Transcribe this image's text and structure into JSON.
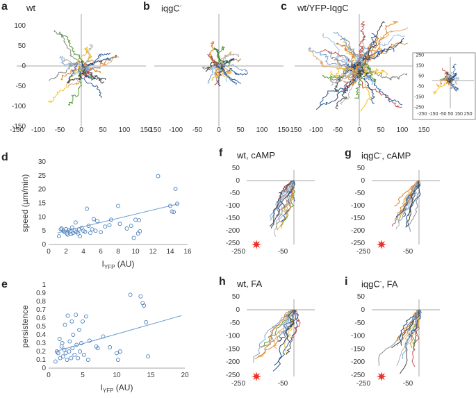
{
  "figure_title": "",
  "colors": {
    "axis": "#a6a6a6",
    "scatter": "#4a7ebb",
    "trend": "#6b9bd1",
    "track_palette": [
      "#2e5f9e",
      "#d9822b",
      "#7aa6d6",
      "#444444",
      "#f2c02e",
      "#5b9b3a",
      "#8c8c8c",
      "#c0504d",
      "#9dc3e6",
      "#b3b3b3",
      "#e6a86c",
      "#1f497d"
    ],
    "starburst": "#e8332a"
  },
  "chart_data": [
    {
      "id": "a",
      "label": "a",
      "title": "wt",
      "type": "line",
      "xlim": [
        -150,
        150
      ],
      "ylim": [
        -150,
        150
      ],
      "xticks": [
        -150,
        -100,
        -50,
        0,
        50,
        100,
        150
      ],
      "yticks": [
        100,
        50,
        0,
        -50,
        -100,
        -150
      ]
    },
    {
      "id": "b",
      "label": "b",
      "title": "iqgC",
      "title_sup": "-",
      "type": "line",
      "xlim": [
        -150,
        150
      ],
      "ylim": [
        -150,
        150
      ],
      "xticks": [
        -150,
        -100,
        -50,
        0,
        50,
        100,
        150
      ],
      "yticks": []
    },
    {
      "id": "c",
      "label": "c",
      "title": "wt/YFP-IqgC",
      "type": "line",
      "xlim": [
        -150,
        150
      ],
      "ylim": [
        -150,
        150
      ],
      "xticks": [
        -150,
        -100,
        -50,
        0,
        50,
        100,
        150
      ],
      "yticks": [],
      "inset": {
        "xticks": [
          -250,
          -150,
          -50,
          50,
          150,
          250
        ],
        "xtick_text": "-250 -150 -50  50 150 250",
        "yticks": [
          250,
          150,
          50,
          -50,
          -150,
          -250
        ]
      }
    },
    {
      "id": "d",
      "label": "d",
      "title": "",
      "type": "scatter",
      "xlabel": "I",
      "xlabel_sub": "YFP",
      "xlabel_unit": " (AU)",
      "ylabel": "speed (µm/min)",
      "xlim": [
        0,
        16
      ],
      "ylim": [
        0,
        30
      ],
      "xticks": [
        0,
        2,
        4,
        6,
        8,
        10,
        12,
        14,
        16
      ],
      "yticks": [
        0,
        5,
        10,
        15,
        20,
        25,
        30
      ],
      "trendline": [
        [
          1.0,
          4.2
        ],
        [
          15.0,
          14.8
        ]
      ],
      "points": [
        [
          1.2,
          3.0
        ],
        [
          1.4,
          5.5
        ],
        [
          1.5,
          5.8
        ],
        [
          1.7,
          5.0
        ],
        [
          1.8,
          4.6
        ],
        [
          2.0,
          5.6
        ],
        [
          2.1,
          4.0
        ],
        [
          2.2,
          3.6
        ],
        [
          2.3,
          5.2
        ],
        [
          2.5,
          4.8
        ],
        [
          2.6,
          3.8
        ],
        [
          2.7,
          6.2
        ],
        [
          2.8,
          4.2
        ],
        [
          3.0,
          5.0
        ],
        [
          3.1,
          8.0
        ],
        [
          3.2,
          4.5
        ],
        [
          3.4,
          4.0
        ],
        [
          3.5,
          5.5
        ],
        [
          3.6,
          3.0
        ],
        [
          3.8,
          6.0
        ],
        [
          4.0,
          5.0
        ],
        [
          4.2,
          4.6
        ],
        [
          4.4,
          13.0
        ],
        [
          4.6,
          6.8
        ],
        [
          4.8,
          4.2
        ],
        [
          5.0,
          5.5
        ],
        [
          5.2,
          9.2
        ],
        [
          5.4,
          5.0
        ],
        [
          5.6,
          8.5
        ],
        [
          6.0,
          4.5
        ],
        [
          6.5,
          6.5
        ],
        [
          7.0,
          7.0
        ],
        [
          7.2,
          9.0
        ],
        [
          8.0,
          14.0
        ],
        [
          8.2,
          7.5
        ],
        [
          9.0,
          5.8
        ],
        [
          9.5,
          6.8
        ],
        [
          10.0,
          9.0
        ],
        [
          10.3,
          4.0
        ],
        [
          10.5,
          4.8
        ],
        [
          12.6,
          24.8
        ],
        [
          14.0,
          14.0
        ],
        [
          14.2,
          12.0
        ],
        [
          14.4,
          11.8
        ],
        [
          14.6,
          20.2
        ],
        [
          14.8,
          14.8
        ],
        [
          10.4,
          8.8
        ],
        [
          9.8,
          2.4
        ]
      ]
    },
    {
      "id": "e",
      "label": "e",
      "title": "",
      "type": "scatter",
      "xlabel": "I",
      "xlabel_sub": "YFP",
      "xlabel_unit": " (AU)",
      "ylabel": "persistence",
      "xlim": [
        0,
        20
      ],
      "ylim": [
        0,
        1
      ],
      "xticks": [
        0,
        5,
        10,
        15,
        20
      ],
      "yticks": [
        0,
        0.1,
        0.2,
        0.3,
        0.4,
        0.5,
        0.6,
        0.7,
        0.8,
        0.9,
        1
      ],
      "trendline": [
        [
          1.0,
          0.2
        ],
        [
          19.5,
          0.63
        ]
      ],
      "points": [
        [
          1.0,
          0.08
        ],
        [
          1.2,
          0.2
        ],
        [
          1.4,
          0.18
        ],
        [
          1.6,
          0.35
        ],
        [
          1.7,
          0.12
        ],
        [
          1.9,
          0.26
        ],
        [
          2.0,
          0.3
        ],
        [
          2.1,
          0.14
        ],
        [
          2.3,
          0.22
        ],
        [
          2.4,
          0.52
        ],
        [
          2.5,
          0.18
        ],
        [
          2.7,
          0.1
        ],
        [
          2.8,
          0.63
        ],
        [
          3.0,
          0.2
        ],
        [
          3.1,
          0.32
        ],
        [
          3.3,
          0.12
        ],
        [
          3.4,
          0.56
        ],
        [
          3.5,
          0.24
        ],
        [
          3.6,
          0.4
        ],
        [
          3.8,
          0.16
        ],
        [
          4.0,
          0.64
        ],
        [
          4.1,
          0.28
        ],
        [
          4.3,
          0.12
        ],
        [
          4.5,
          0.46
        ],
        [
          4.6,
          0.2
        ],
        [
          4.8,
          0.3
        ],
        [
          5.0,
          0.56
        ],
        [
          5.2,
          0.16
        ],
        [
          5.5,
          0.62
        ],
        [
          5.8,
          0.1
        ],
        [
          6.0,
          0.33
        ],
        [
          7.0,
          0.26
        ],
        [
          7.2,
          0.24
        ],
        [
          8.0,
          0.38
        ],
        [
          9.0,
          0.25
        ],
        [
          10.0,
          0.18
        ],
        [
          10.2,
          0.1
        ],
        [
          10.5,
          0.2
        ],
        [
          12.0,
          0.88
        ],
        [
          13.5,
          0.86
        ],
        [
          13.8,
          0.78
        ],
        [
          14.0,
          0.75
        ],
        [
          14.3,
          0.55
        ],
        [
          14.6,
          0.14
        ]
      ]
    },
    {
      "id": "f",
      "label": "f",
      "title": "wt, cAMP",
      "type": "line",
      "xlim": [
        -250,
        50
      ],
      "ylim": [
        -250,
        50
      ],
      "xtick_labels": [
        "-250",
        "-50"
      ],
      "yticks": [
        50,
        0,
        -50,
        -100,
        -150,
        -200,
        -250
      ]
    },
    {
      "id": "g",
      "label": "g",
      "title": "iqgC",
      "title_sup": "-",
      "title_suffix": ", cAMP",
      "type": "line",
      "xlim": [
        -250,
        50
      ],
      "ylim": [
        -250,
        50
      ],
      "xtick_labels": [
        "-250",
        "-50"
      ],
      "yticks": [
        50,
        0,
        -50,
        -100,
        -150,
        -200,
        -250
      ]
    },
    {
      "id": "h",
      "label": "h",
      "title": "wt, FA",
      "type": "line",
      "xlim": [
        -250,
        50
      ],
      "ylim": [
        -250,
        50
      ],
      "xtick_labels": [
        "-250",
        "-50"
      ],
      "yticks": [
        50,
        0,
        -50,
        -100,
        -150,
        -200,
        -250
      ]
    },
    {
      "id": "i",
      "label": "i",
      "title": "iqgC",
      "title_sup": "-",
      "title_suffix": ", FA",
      "type": "line",
      "xlim": [
        -250,
        50
      ],
      "ylim": [
        -250,
        50
      ],
      "xtick_labels": [
        "-250",
        "-50"
      ],
      "yticks": [
        50,
        0,
        -50,
        -100,
        -150,
        -200,
        -250
      ]
    }
  ]
}
